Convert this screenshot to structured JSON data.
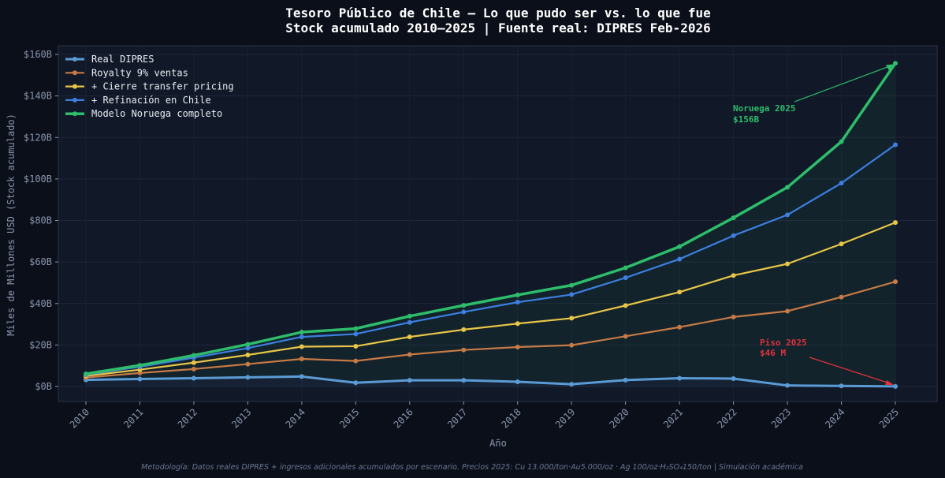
{
  "chart_data": {
    "type": "line",
    "title": "Tesoro Público de Chile — Lo que pudo ser vs. lo que fue",
    "subtitle": "Stock acumulado 2010–2025 | Fuente real: DIPRES Feb-2026",
    "xlabel": "Año",
    "ylabel": "Miles de Millones USD (Stock acumulado)",
    "x": [
      "2010",
      "2011",
      "2012",
      "2013",
      "2014",
      "2015",
      "2016",
      "2017",
      "2018",
      "2019",
      "2020",
      "2021",
      "2022",
      "2023",
      "2024",
      "2025"
    ],
    "yticks": [
      0,
      20,
      40,
      60,
      80,
      100,
      120,
      140,
      160
    ],
    "ytick_labels": [
      "$0B",
      "$20B",
      "$40B",
      "$60B",
      "$80B",
      "$100B",
      "$120B",
      "$140B",
      "$160B"
    ],
    "ylim": [
      -8,
      164
    ],
    "grid": true,
    "legend_position": "top-left",
    "series": [
      {
        "name": "Real DIPRES",
        "color": "#5b9bd5",
        "values": [
          3.2,
          3.6,
          4.0,
          4.4,
          4.8,
          1.8,
          3.0,
          3.0,
          2.3,
          1.1,
          3.1,
          4.0,
          3.8,
          0.5,
          0.3,
          0.046
        ]
      },
      {
        "name": "Royalty 9% ventas",
        "color": "#c77a45",
        "values": [
          4.3,
          6.5,
          8.4,
          10.8,
          13.3,
          12.3,
          15.4,
          17.6,
          19.0,
          19.9,
          24.2,
          28.6,
          33.5,
          36.3,
          43.1,
          50.5
        ]
      },
      {
        "name": "+ Cierre transfer pricing",
        "color": "#e8c547",
        "values": [
          5.1,
          8.1,
          11.5,
          15.2,
          19.2,
          19.4,
          23.9,
          27.4,
          30.3,
          32.9,
          39.0,
          45.5,
          53.5,
          59.1,
          68.7,
          79.0
        ]
      },
      {
        "name": "+ Refinación en Chile",
        "color": "#3d7fe0",
        "values": [
          5.7,
          9.5,
          13.9,
          18.5,
          23.9,
          25.3,
          30.9,
          35.9,
          40.6,
          44.3,
          52.4,
          61.4,
          72.7,
          82.7,
          98.0,
          116.5
        ]
      },
      {
        "name": "Modelo Noruega completo",
        "color": "#2ebd6b",
        "values": [
          6.1,
          10.2,
          15.0,
          20.3,
          26.2,
          27.9,
          33.9,
          39.1,
          44.1,
          48.8,
          57.2,
          67.4,
          81.3,
          96.0,
          118.0,
          155.7
        ]
      }
    ],
    "annotations": [
      {
        "text_line1": "Noruega 2025",
        "text_line2": "$156B",
        "color": "#2ebd6b",
        "x": "2025",
        "y": 155.7
      },
      {
        "text_line1": "Piso 2025",
        "text_line2": "$46 M",
        "color": "#e0323c",
        "x": "2025",
        "y": 0.046
      }
    ],
    "footnote": "Metodología: Datos reales DIPRES + ingresos adicionales acumulados por escenario. Precios 2025: Cu 13.000/ton·Au5.000/oz · Ag 100/oz·H₂SO₄150/ton | Simulación académica"
  }
}
